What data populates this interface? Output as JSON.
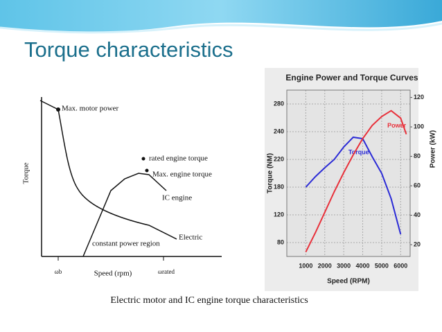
{
  "title": "Torque characteristics",
  "caption": "Electric motor and IC engine torque characteristics",
  "diagram": {
    "y_label": "Torque",
    "x_label": "Speed (rpm)",
    "x_base": "ωb",
    "x_rated": "ωrated",
    "labels": {
      "max_motor_power": "Max. motor power",
      "rated_engine_torque": "rated engine torque",
      "max_engine_torque": "Max. engine torque",
      "ic_engine": "IC engine",
      "electric": "Electric",
      "constant_power": "constant power region"
    }
  },
  "chart_data": {
    "type": "line",
    "title": "Engine Power and Torque Curves",
    "x_label": "Speed (RPM)",
    "y_label": "Torque (NM)",
    "y2_label": "Power (kW)",
    "x": [
      1000,
      1500,
      2000,
      2500,
      3000,
      3500,
      4000,
      4500,
      5000,
      5500,
      6000,
      6300
    ],
    "xlim": [
      0,
      6500
    ],
    "xticks": [
      1000,
      2000,
      3000,
      4000,
      5000,
      6000
    ],
    "ylim": [
      60,
      300
    ],
    "yticks": [
      80,
      120,
      180,
      220,
      240,
      280
    ],
    "y2lim": [
      12,
      125
    ],
    "y2ticks": [
      20,
      40,
      60,
      80,
      100,
      120
    ],
    "grid": true,
    "series": [
      {
        "name": "Torque",
        "color": "#2b2bd6",
        "values": [
          180,
          195,
          208,
          220,
          229,
          236,
          235,
          222,
          200,
          155,
          92,
          null
        ]
      },
      {
        "name": "Power",
        "color": "#e8303a",
        "axis": "y2",
        "values": [
          15,
          28,
          42,
          56,
          69,
          81,
          92,
          101,
          107,
          111,
          106,
          95
        ]
      }
    ]
  }
}
